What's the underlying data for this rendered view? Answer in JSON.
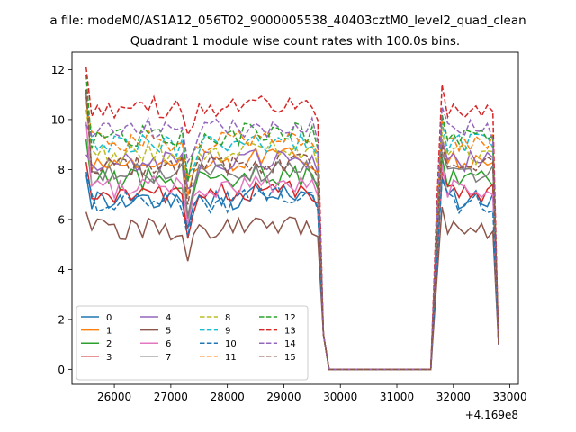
{
  "chart_data": {
    "type": "line",
    "suptitle": "a file: modeM0/AS1A12_056T02_9000005538_40403cztM0_level2_quad_clean",
    "title": "Quadrant 1 module wise count rates with 100.0s bins.",
    "xlabel": "",
    "ylabel": "",
    "x_offset_label": "+4.169e8",
    "xlim": [
      25250,
      33150
    ],
    "ylim": [
      -0.6,
      12.7
    ],
    "xticks": [
      26000,
      27000,
      28000,
      29000,
      30000,
      31000,
      32000,
      33000
    ],
    "yticks": [
      0,
      2,
      4,
      6,
      8,
      10,
      12
    ],
    "legend": {
      "placement": "lower-left",
      "columns": 4
    },
    "series": [
      {
        "name": "0",
        "color": "#1f77b4",
        "dash": "solid",
        "level": 6.8,
        "start": 7.8
      },
      {
        "name": "1",
        "color": "#ff7f0e",
        "dash": "solid",
        "level": 8.3,
        "start": 11.0
      },
      {
        "name": "2",
        "color": "#2ca02c",
        "dash": "solid",
        "level": 7.6,
        "start": 9.2
      },
      {
        "name": "3",
        "color": "#d62728",
        "dash": "solid",
        "level": 7.0,
        "start": 8.3
      },
      {
        "name": "4",
        "color": "#9467bd",
        "dash": "solid",
        "level": 8.3,
        "start": 8.6
      },
      {
        "name": "5",
        "color": "#8c564b",
        "dash": "solid",
        "level": 5.6,
        "start": 6.3
      },
      {
        "name": "6",
        "color": "#e377c2",
        "dash": "solid",
        "level": 7.3,
        "start": 9.9
      },
      {
        "name": "7",
        "color": "#7f7f7f",
        "dash": "solid",
        "level": 7.8,
        "start": 11.1
      },
      {
        "name": "8",
        "color": "#bcbd22",
        "dash": "dashed",
        "level": 8.6,
        "start": 10.4
      },
      {
        "name": "9",
        "color": "#17becf",
        "dash": "dashed",
        "level": 9.0,
        "start": 10.9
      },
      {
        "name": "10",
        "color": "#1f77b4",
        "dash": "dashed",
        "level": 6.7,
        "start": 7.9
      },
      {
        "name": "11",
        "color": "#ff7f0e",
        "dash": "dashed",
        "level": 9.1,
        "start": 10.7
      },
      {
        "name": "12",
        "color": "#2ca02c",
        "dash": "dashed",
        "level": 9.3,
        "start": 11.8
      },
      {
        "name": "13",
        "color": "#d62728",
        "dash": "dashed",
        "level": 10.5,
        "start": 12.1
      },
      {
        "name": "14",
        "color": "#9467bd",
        "dash": "dashed",
        "level": 9.6,
        "start": 9.8
      },
      {
        "name": "15",
        "color": "#8c564b",
        "dash": "dashed",
        "level": 8.1,
        "start": 11.2
      }
    ]
  }
}
